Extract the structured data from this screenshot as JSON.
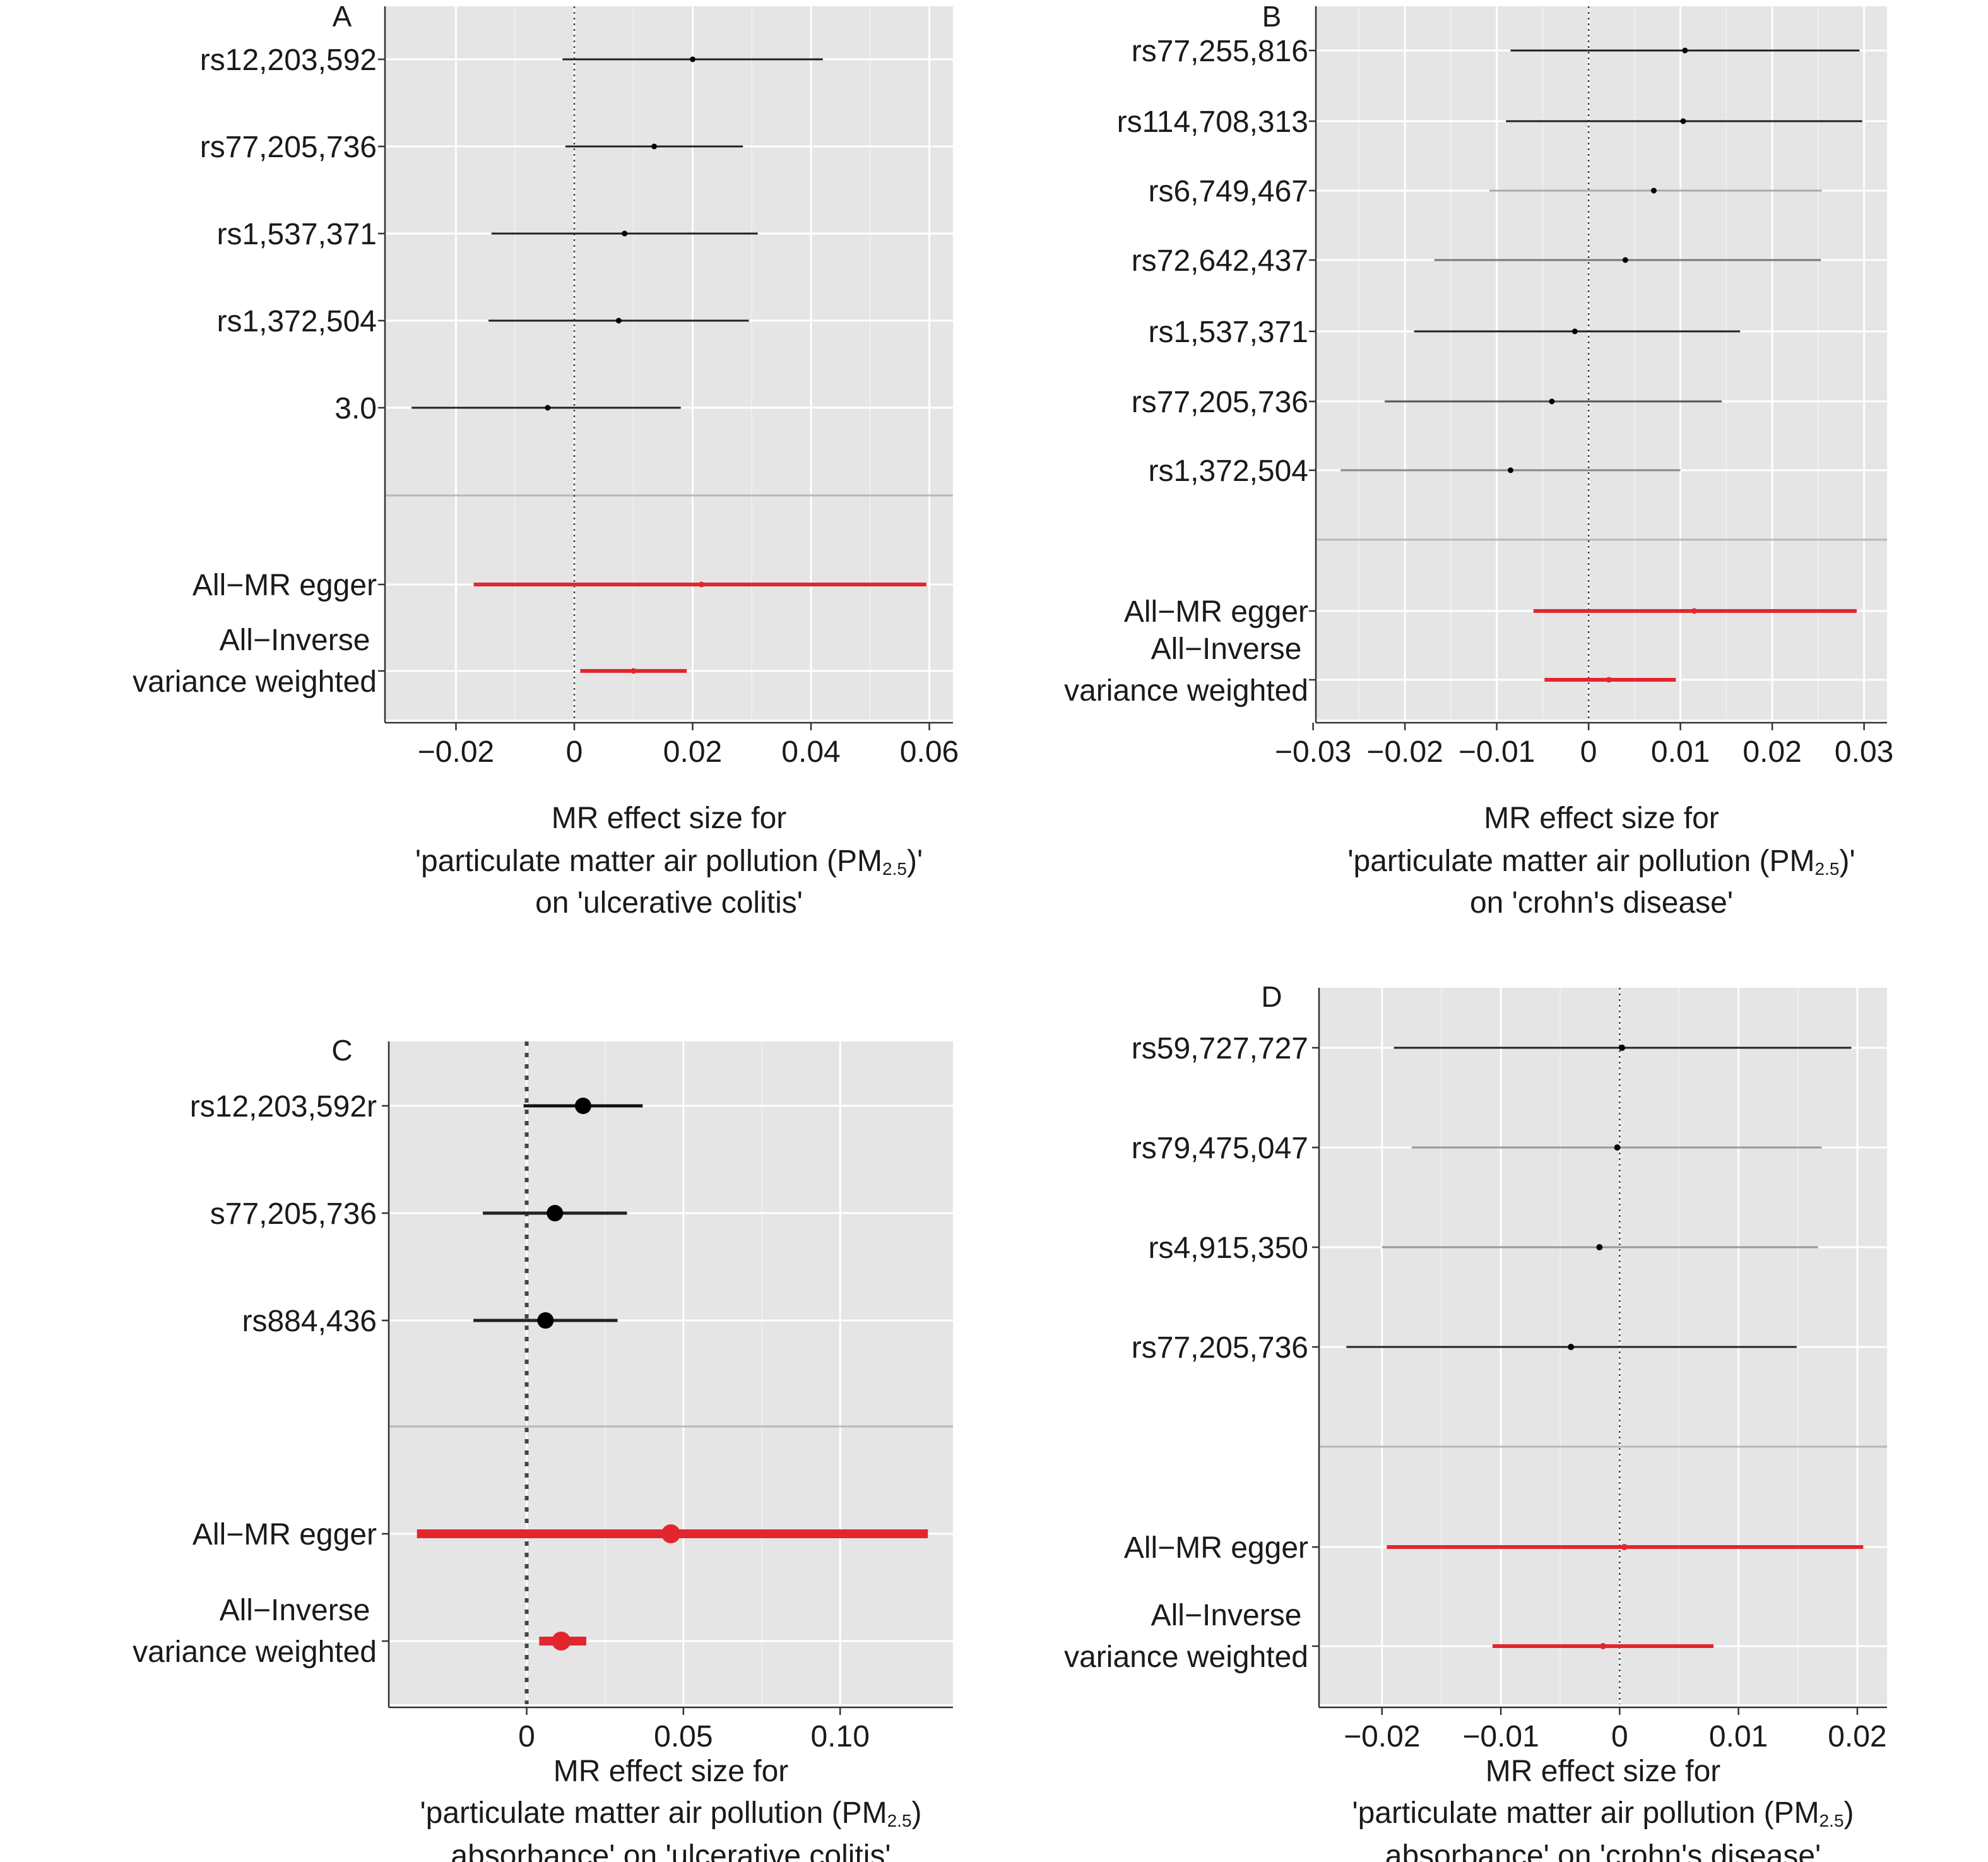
{
  "chart_data": [
    {
      "type": "forest",
      "panel_label": "A",
      "xlabel_lines": [
        "MR effect size for",
        "'particulate matter air pollution (PM|2.5|)'",
        "on 'ulcerative colitis'"
      ],
      "xticks": [
        -0.02,
        0,
        0.02,
        0.04,
        0.06
      ],
      "xtick_labels": [
        "−0.02",
        "0",
        "0.02",
        "0.04",
        "0.06"
      ],
      "xlim": [
        -0.032,
        0.064
      ],
      "grid": true,
      "zero_line": "dotted",
      "snps": [
        {
          "label": "rs12,203,592",
          "estimate": 0.02,
          "lower": -0.002,
          "upper": 0.042,
          "color": "#222222"
        },
        {
          "label": "rs77,205,736",
          "estimate": 0.0135,
          "lower": -0.0015,
          "upper": 0.0285,
          "color": "#222222"
        },
        {
          "label": "rs1,537,371",
          "estimate": 0.0085,
          "lower": -0.014,
          "upper": 0.031,
          "color": "#222222"
        },
        {
          "label": "rs1,372,504",
          "estimate": 0.0075,
          "lower": -0.0145,
          "upper": 0.0295,
          "color": "#222222"
        },
        {
          "label": "3.0",
          "estimate": -0.0045,
          "lower": -0.0275,
          "upper": 0.018,
          "color": "#222222"
        }
      ],
      "summary": [
        {
          "label_lines": [
            "All−MR egger"
          ],
          "estimate": 0.0215,
          "lower": -0.017,
          "upper": 0.0595,
          "color": "#e3262e"
        },
        {
          "label_lines": [
            "All−Inverse",
            "variance weighted"
          ],
          "estimate": 0.01,
          "lower": 0.001,
          "upper": 0.019,
          "color": "#e3262e"
        }
      ]
    },
    {
      "type": "forest",
      "panel_label": "B",
      "xlabel_lines": [
        "MR effect size for",
        "'particulate matter air pollution (PM|2.5|)'",
        "on 'crohn's disease'"
      ],
      "xticks": [
        -0.03,
        -0.02,
        -0.01,
        0,
        0.01,
        0.02,
        0.03
      ],
      "xtick_labels": [
        "−0.03",
        "−0.02",
        "−0.01",
        "0",
        "0.01",
        "0.02",
        "0.03"
      ],
      "xlim": [
        -0.0297,
        0.0325
      ],
      "grid": true,
      "zero_line": "dotted",
      "snps": [
        {
          "label": "rs77,255,816",
          "estimate": 0.0105,
          "lower": -0.0085,
          "upper": 0.0295,
          "color": "#222222"
        },
        {
          "label": "rs114,708,313",
          "estimate": 0.0103,
          "lower": -0.009,
          "upper": 0.0298,
          "color": "#222222"
        },
        {
          "label": "rs6,749,467",
          "estimate": 0.0071,
          "lower": -0.0108,
          "upper": 0.0254,
          "color": "#aaaaaa"
        },
        {
          "label": "rs72,642,437",
          "estimate": 0.004,
          "lower": -0.0168,
          "upper": 0.0253,
          "color": "#777777"
        },
        {
          "label": "rs1,537,371",
          "estimate": -0.0015,
          "lower": -0.019,
          "upper": 0.0165,
          "color": "#222222"
        },
        {
          "label": "rs77,205,736",
          "estimate": -0.004,
          "lower": -0.0222,
          "upper": 0.0145,
          "color": "#555555"
        },
        {
          "label": "rs1,372,504",
          "estimate": -0.0085,
          "lower": -0.027,
          "upper": 0.01,
          "color": "#888888"
        }
      ],
      "summary": [
        {
          "label_lines": [
            "All−MR egger"
          ],
          "estimate": 0.0115,
          "lower": -0.006,
          "upper": 0.0292,
          "color": "#e3262e"
        },
        {
          "label_lines": [
            "All−Inverse",
            "variance weighted"
          ],
          "estimate": 0.0022,
          "lower": -0.0048,
          "upper": 0.0095,
          "color": "#e3262e"
        }
      ]
    },
    {
      "type": "forest",
      "panel_label": "C",
      "xlabel_lines": [
        "MR effect size for",
        "'particulate matter air pollution (PM|2.5|)",
        "absorbance' on 'ulcerative colitis'"
      ],
      "xticks": [
        0,
        0.05,
        0.1
      ],
      "xtick_labels": [
        "0",
        "0.05",
        "0.10"
      ],
      "xlim": [
        -0.044,
        0.136
      ],
      "grid": true,
      "zero_line": "dotted",
      "snps": [
        {
          "label": "rs12,203,592r",
          "estimate": 0.018,
          "lower": -0.001,
          "upper": 0.037,
          "color": "#111111"
        },
        {
          "label": "s77,205,736",
          "estimate": 0.009,
          "lower": -0.014,
          "upper": 0.032,
          "color": "#222222"
        },
        {
          "label": "rs884,436",
          "estimate": 0.006,
          "lower": -0.017,
          "upper": 0.029,
          "color": "#222222"
        }
      ],
      "summary": [
        {
          "label_lines": [
            "All−MR egger"
          ],
          "estimate": 0.046,
          "lower": -0.035,
          "upper": 0.128,
          "color": "#e3262e"
        },
        {
          "label_lines": [
            "All−Inverse",
            "variance weighted"
          ],
          "estimate": 0.011,
          "lower": 0.004,
          "upper": 0.019,
          "color": "#e3262e"
        }
      ]
    },
    {
      "type": "forest",
      "panel_label": "D",
      "xlabel_lines": [
        "MR effect size for",
        "'particulate matter air pollution (PM|2.5|)",
        "absorbance' on 'crohn's disease'"
      ],
      "xticks": [
        -0.02,
        -0.01,
        0,
        0.01,
        0.02
      ],
      "xtick_labels": [
        "−0.02",
        "−0.01",
        "0",
        "0.01",
        "0.02"
      ],
      "xlim": [
        -0.0253,
        0.0225
      ],
      "grid": true,
      "zero_line": "dotted",
      "snps": [
        {
          "label": "rs59,727,727",
          "estimate": 0.0002,
          "lower": -0.019,
          "upper": 0.0195,
          "color": "#222222"
        },
        {
          "label": "rs79,475,047",
          "estimate": -0.0002,
          "lower": -0.0175,
          "upper": 0.017,
          "color": "#999999"
        },
        {
          "label": "rs4,915,350",
          "estimate": -0.0017,
          "lower": -0.02,
          "upper": 0.0167,
          "color": "#999999"
        },
        {
          "label": "rs77,205,736",
          "estimate": -0.0041,
          "lower": -0.023,
          "upper": 0.0149,
          "color": "#222222"
        }
      ],
      "summary": [
        {
          "label_lines": [
            "All−MR egger"
          ],
          "estimate": 0.0004,
          "lower": -0.0196,
          "upper": 0.0205,
          "color": "#e3262e"
        },
        {
          "label_lines": [
            "All−Inverse",
            "variance weighted"
          ],
          "estimate": -0.0014,
          "lower": -0.0107,
          "upper": 0.0079,
          "color": "#e3262e"
        }
      ]
    }
  ]
}
